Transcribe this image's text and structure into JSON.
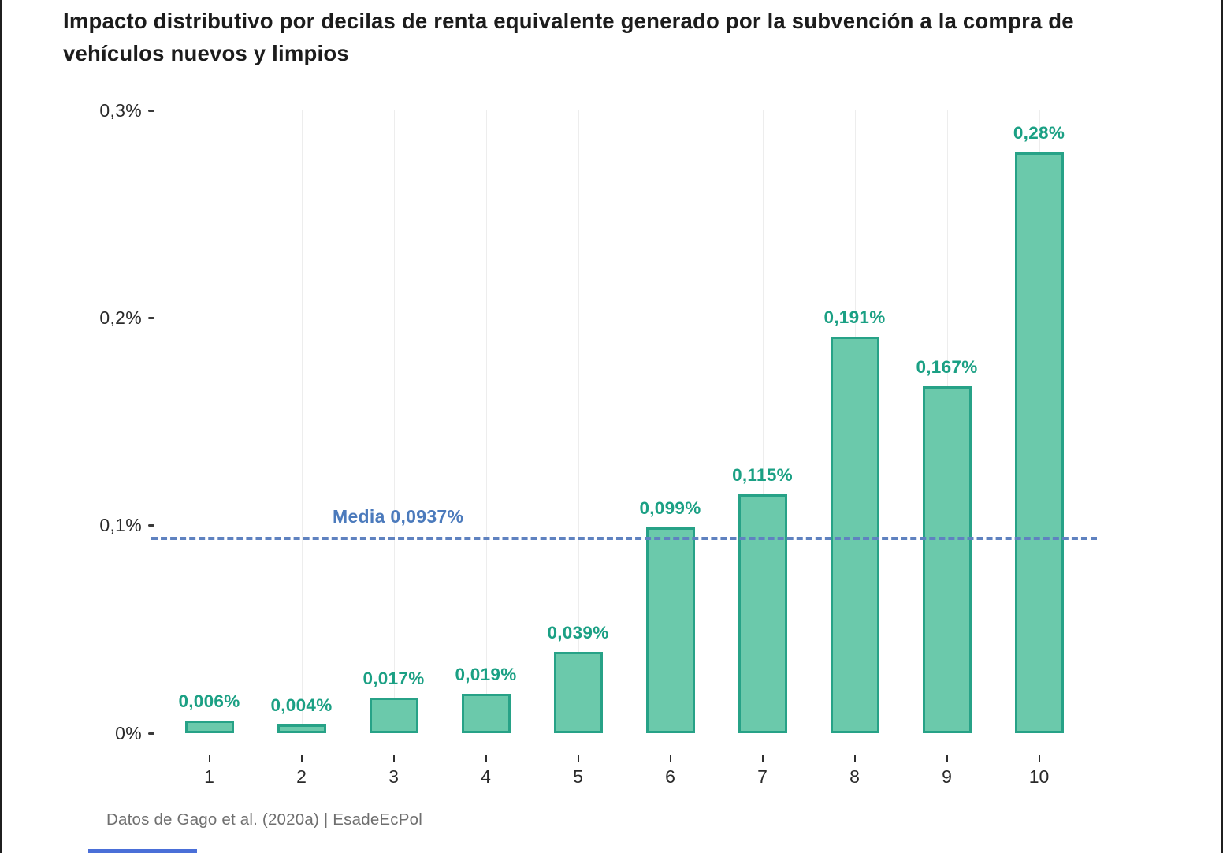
{
  "title": "Impacto distributivo por decilas de renta equivalente generado por la subvención a la compra de vehículos nuevos y limpios",
  "footer": "Datos de Gago et al. (2020a) | EsadeEcPol",
  "chart_data": {
    "type": "bar",
    "title": "Impacto distributivo por decilas de renta equivalente generado por la subvención a la compra de vehículos nuevos y limpios",
    "xlabel": "",
    "ylabel": "",
    "categories": [
      "1",
      "2",
      "3",
      "4",
      "5",
      "6",
      "7",
      "8",
      "9",
      "10"
    ],
    "values": [
      0.006,
      0.004,
      0.017,
      0.019,
      0.039,
      0.099,
      0.115,
      0.191,
      0.167,
      0.28
    ],
    "value_labels": [
      "0,006%",
      "0,004%",
      "0,017%",
      "0,019%",
      "0,039%",
      "0,099%",
      "0,115%",
      "0,191%",
      "0,167%",
      "0,28%"
    ],
    "y_ticks": [
      "0%",
      "0,1%",
      "0,2%",
      "0,3%"
    ],
    "y_tick_values": [
      0,
      0.1,
      0.2,
      0.3
    ],
    "ylim": [
      0,
      0.3
    ],
    "grid": "vertical-faint",
    "legend": "none",
    "mean_line": {
      "label": "Media 0,0937%",
      "value": 0.0937
    },
    "colors": {
      "bar_fill": "#6bc9ab",
      "bar_border": "#27a287",
      "value_label": "#1ba084",
      "mean_line": "#5f82c0",
      "mean_label": "#4b7abc",
      "title": "#1c1c1c",
      "axis_text": "#2a2a2a",
      "footer_text": "#6f6f6f",
      "accent": "#4a6fd8"
    }
  }
}
